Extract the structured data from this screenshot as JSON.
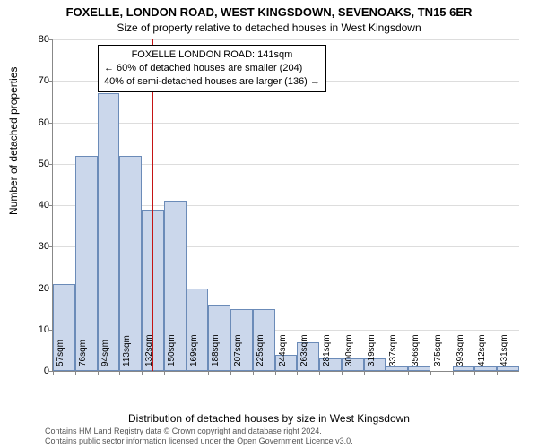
{
  "title_main": "FOXELLE, LONDON ROAD, WEST KINGSDOWN, SEVENOAKS, TN15 6ER",
  "title_sub": "Size of property relative to detached houses in West Kingsdown",
  "ylabel": "Number of detached properties",
  "xlabel": "Distribution of detached houses by size in West Kingsdown",
  "license_line1": "Contains HM Land Registry data © Crown copyright and database right 2024.",
  "license_line2": "Contains public sector information licensed under the Open Government Licence v3.0.",
  "chart": {
    "type": "histogram",
    "bar_fill": "#cbd7eb",
    "bar_stroke": "#6b8bb8",
    "grid_color": "#dddddd",
    "ylim": [
      0,
      80
    ],
    "ytick_step": 10,
    "xtick_labels": [
      "57sqm",
      "76sqm",
      "94sqm",
      "113sqm",
      "132sqm",
      "150sqm",
      "169sqm",
      "188sqm",
      "207sqm",
      "225sqm",
      "244sqm",
      "263sqm",
      "281sqm",
      "300sqm",
      "319sqm",
      "337sqm",
      "356sqm",
      "375sqm",
      "393sqm",
      "412sqm",
      "431sqm"
    ],
    "values": [
      21,
      52,
      67,
      52,
      39,
      41,
      20,
      16,
      15,
      15,
      4,
      7,
      3,
      3,
      3,
      1,
      1,
      0,
      1,
      1,
      1
    ],
    "refline_index": 4.5,
    "refline_color": "#c51414"
  },
  "annotation": {
    "line1": "FOXELLE LONDON ROAD: 141sqm",
    "line2": "← 60% of detached houses are smaller (204)",
    "line3": "40% of semi-detached houses are larger (136) →"
  }
}
